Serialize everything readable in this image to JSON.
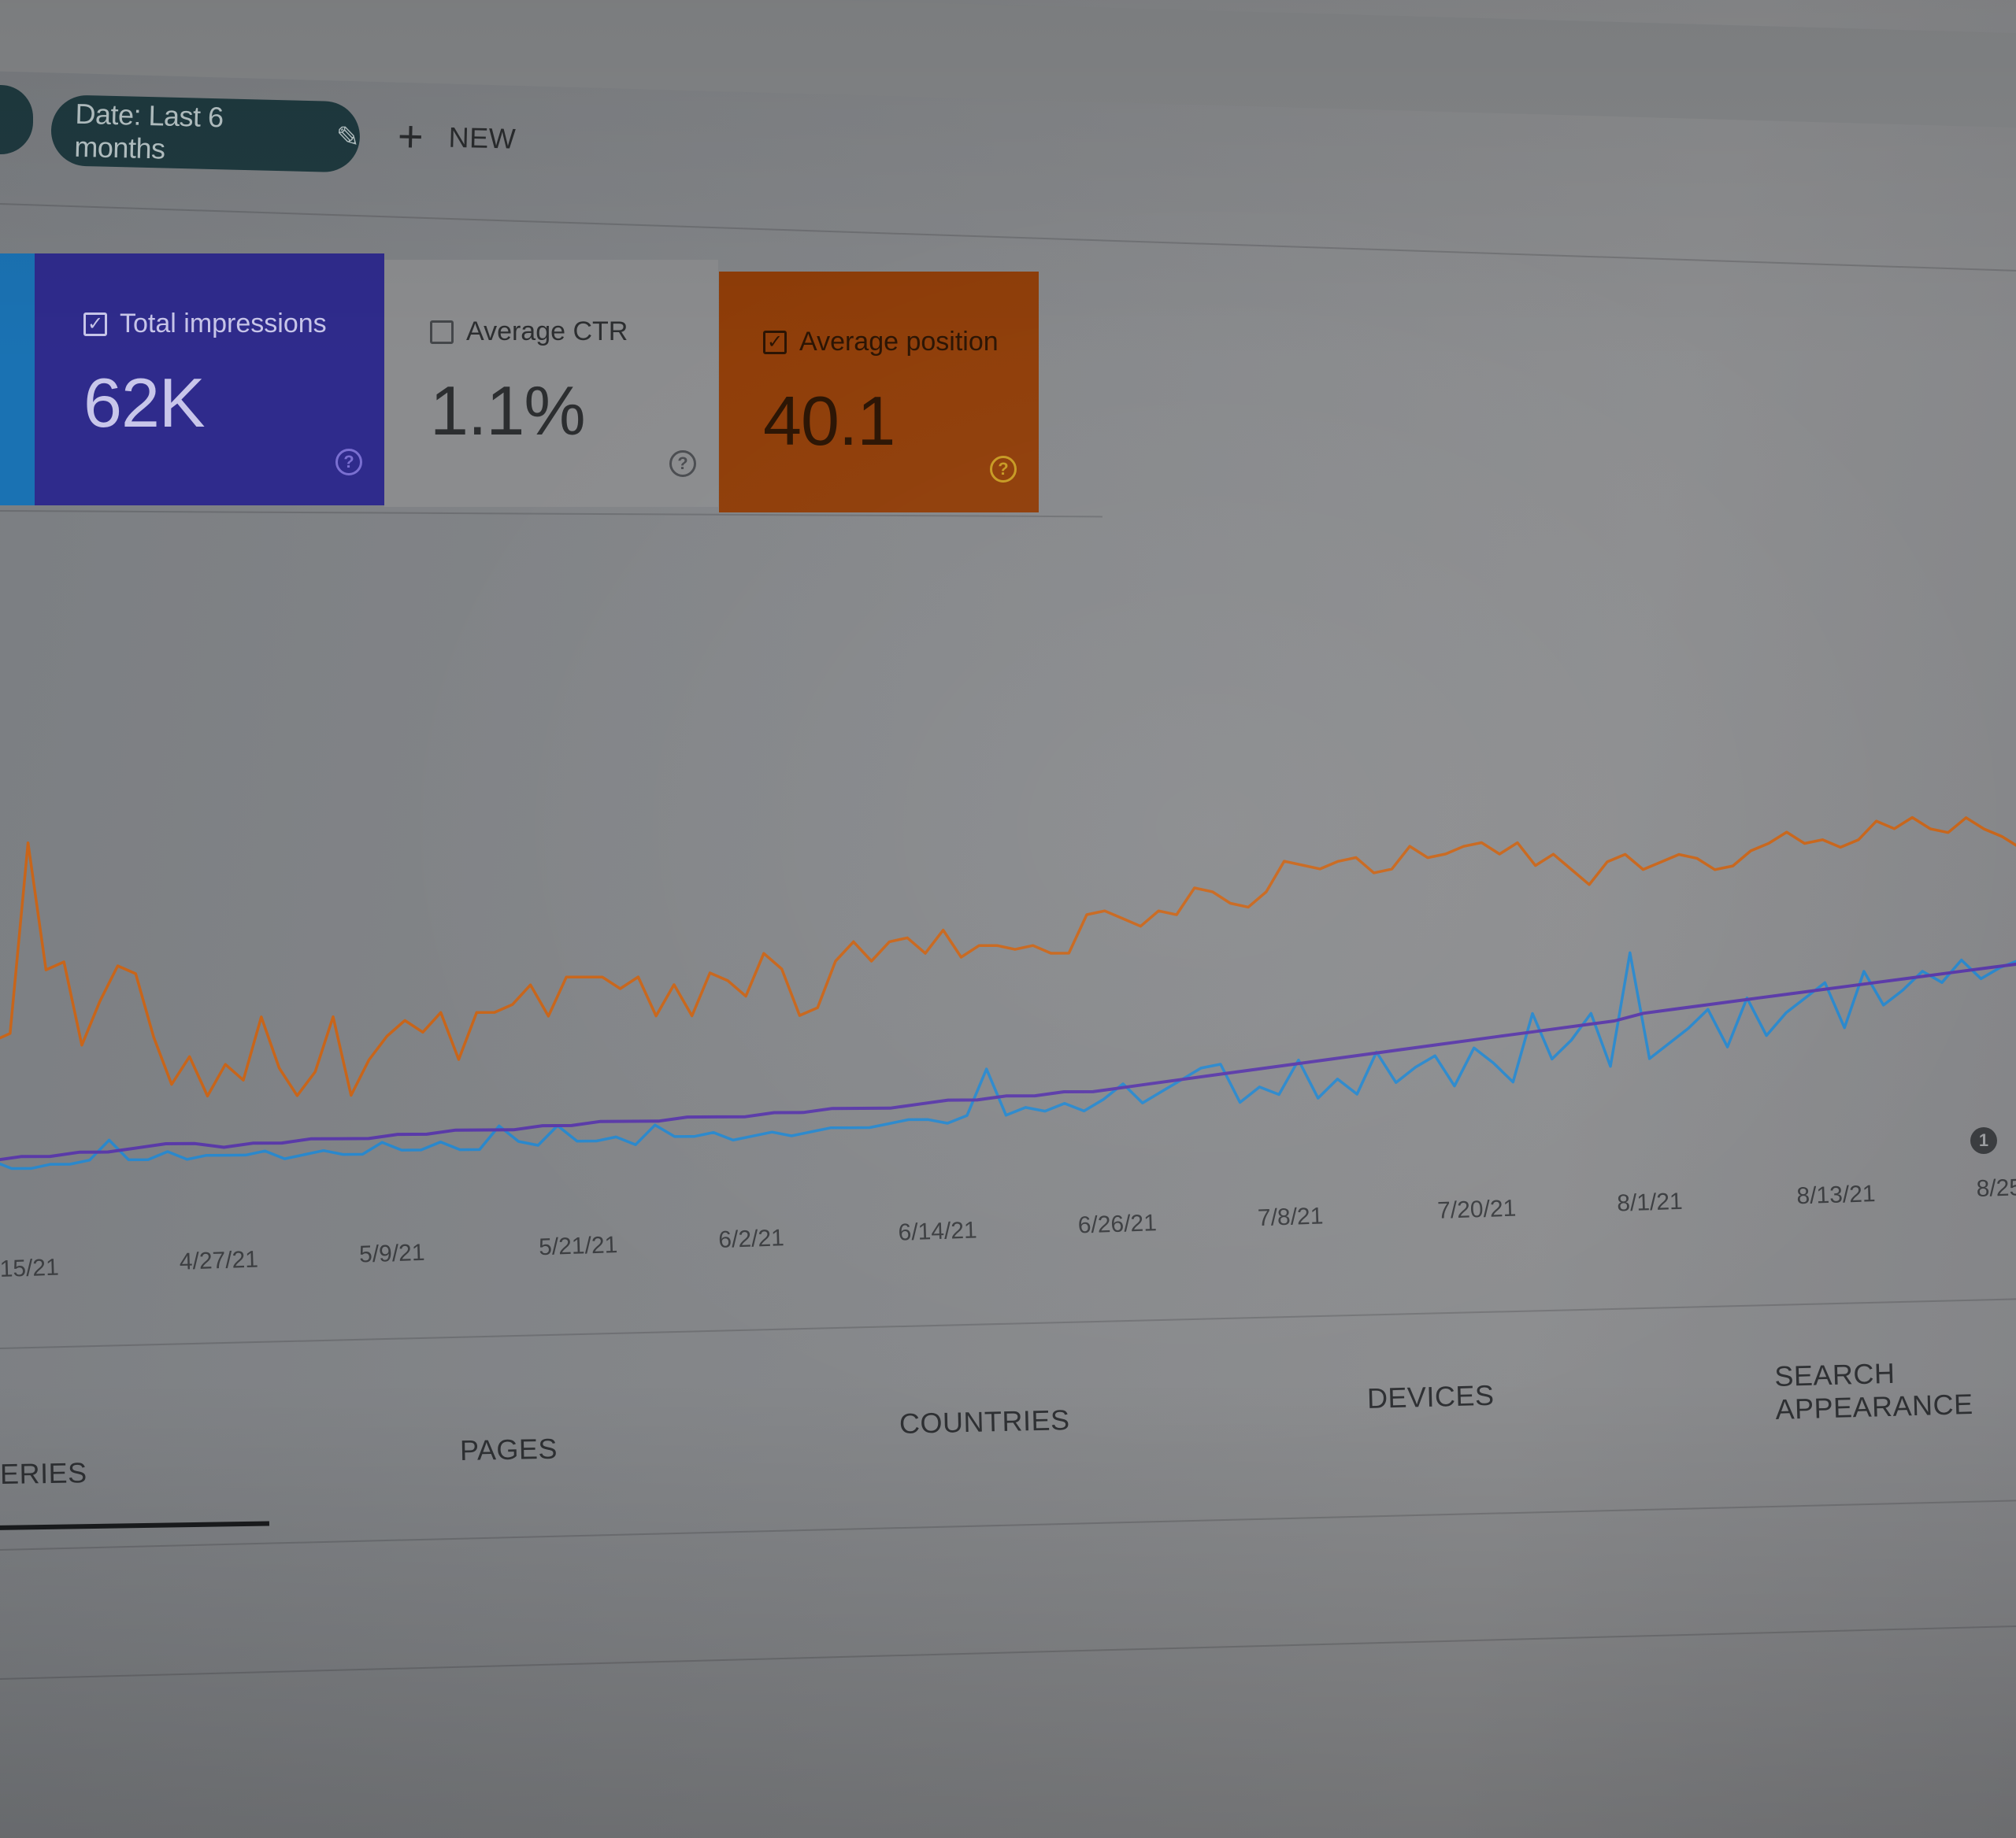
{
  "toolbar": {
    "date_filter_label": "Date: Last 6 months",
    "new_label": "NEW"
  },
  "metrics": [
    {
      "label": "Total impressions",
      "value": "62K",
      "checked": true,
      "color": "#2f2b8c"
    },
    {
      "label": "Average CTR",
      "value": "1.1%",
      "checked": false,
      "color": "#8b8c8e"
    },
    {
      "label": "Average position",
      "value": "40.1",
      "checked": true,
      "color": "#8f3d08"
    }
  ],
  "tabs": [
    "ERIES",
    "PAGES",
    "COUNTRIES",
    "DEVICES",
    "SEARCH APPEARANCE"
  ],
  "annotation_badge": "1",
  "chart_data": {
    "type": "line",
    "x_tick_labels": [
      "15/21",
      "4/27/21",
      "5/9/21",
      "5/21/21",
      "6/2/21",
      "6/14/21",
      "6/26/21",
      "7/8/21",
      "7/20/21",
      "8/1/21",
      "8/13/21",
      "8/25"
    ],
    "series": [
      {
        "color": "#c8651a",
        "values": [
          38,
          40,
          88,
          56,
          58,
          37,
          48,
          57,
          55,
          39,
          27,
          34,
          24,
          32,
          28,
          44,
          31,
          24,
          30,
          44,
          24,
          33,
          39,
          43,
          40,
          45,
          33,
          45,
          45,
          47,
          52,
          44,
          54,
          54,
          54,
          51,
          54,
          44,
          52,
          44,
          55,
          53,
          49,
          60,
          56,
          44,
          46,
          58,
          63,
          58,
          63,
          64,
          60,
          66,
          59,
          62,
          62,
          61,
          62,
          60,
          60,
          70,
          71,
          69,
          67,
          71,
          70,
          77,
          76,
          73,
          72,
          76,
          84,
          83,
          82,
          84,
          85,
          81,
          82,
          88,
          85,
          86,
          88,
          89,
          86,
          89,
          83,
          86,
          82,
          78,
          84,
          86,
          82,
          84,
          86,
          85,
          82,
          83,
          87,
          89,
          92,
          89,
          90,
          88,
          90,
          95,
          93,
          96,
          93,
          92,
          96,
          93,
          91,
          88
        ]
      },
      {
        "color": "#2a88cc",
        "values": [
          8,
          6,
          6,
          7,
          7,
          8,
          13,
          8,
          8,
          10,
          8,
          9,
          9,
          9,
          10,
          8,
          9,
          10,
          9,
          9,
          12,
          10,
          10,
          12,
          10,
          10,
          16,
          12,
          11,
          16,
          12,
          12,
          13,
          11,
          16,
          13,
          13,
          14,
          12,
          13,
          14,
          13,
          14,
          15,
          15,
          15,
          16,
          17,
          17,
          16,
          18,
          30,
          18,
          20,
          19,
          21,
          19,
          22,
          26,
          21,
          24,
          27,
          30,
          31,
          21,
          25,
          23,
          32,
          22,
          27,
          23,
          34,
          26,
          30,
          33,
          25,
          35,
          31,
          26,
          44,
          32,
          37,
          44,
          30,
          60,
          32,
          36,
          40,
          45,
          35,
          48,
          38,
          44,
          48,
          52,
          40,
          55,
          46,
          50,
          55,
          52,
          58,
          53,
          56,
          58
        ]
      },
      {
        "color": "#5a3aa8",
        "values": [
          8,
          9,
          9,
          10,
          10,
          11,
          12,
          12,
          11,
          12,
          12,
          13,
          13,
          13,
          14,
          14,
          15,
          15,
          15,
          16,
          16,
          17,
          17,
          17,
          18,
          18,
          18,
          19,
          19,
          20,
          20,
          20,
          21,
          22,
          22,
          23,
          23,
          24,
          24,
          25,
          26,
          27,
          28,
          29,
          30,
          31,
          32,
          33,
          34,
          35,
          36,
          37,
          38,
          39,
          40,
          41,
          42,
          44,
          45,
          46,
          47,
          48,
          49,
          50,
          51,
          52,
          53,
          54,
          55,
          56,
          57
        ]
      }
    ]
  }
}
